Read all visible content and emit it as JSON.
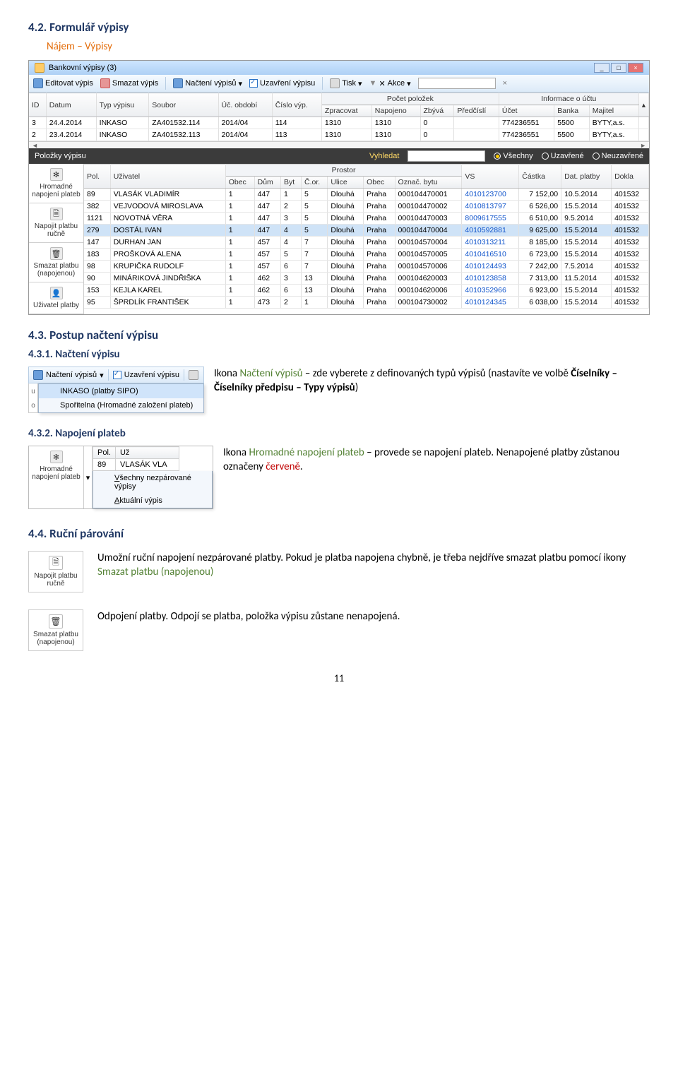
{
  "section42_num": "4.2.",
  "section42_title": "Formulář výpisy",
  "section42_link": "Nájem – Výpisy",
  "window": {
    "title": "Bankovní výpisy (3)",
    "toolbar": {
      "edit": "Editovat výpis",
      "delete": "Smazat výpis",
      "read": "Načtení výpisů",
      "close": "Uzavření výpisu",
      "print": "Tisk",
      "filter": "Akce"
    },
    "top_cols": [
      "ID",
      "Datum",
      "Typ výpisu",
      "Soubor",
      "Úč. období",
      "Číslo výp."
    ],
    "top_group_a": "Počet položek",
    "top_sub_a": [
      "Zpracovat",
      "Napojeno",
      "Zbývá",
      "Předčíslí"
    ],
    "top_group_b": "Informace o účtu",
    "top_sub_b": [
      "Účet",
      "Banka",
      "Majitel"
    ],
    "top_rows": [
      [
        "3",
        "24.4.2014",
        "INKASO",
        "ZA401532.114",
        "2014/04",
        "114",
        "1310",
        "1310",
        "0",
        "",
        "774236551",
        "5500",
        "BYTY,a.s."
      ],
      [
        "2",
        "23.4.2014",
        "INKASO",
        "ZA401532.113",
        "2014/04",
        "113",
        "1310",
        "1310",
        "0",
        "",
        "774236551",
        "5500",
        "BYTY,a.s."
      ]
    ],
    "subhdr_title": "Položky výpisu",
    "subhdr_search": "Vyhledat",
    "subhdr_filters": [
      "Všechny",
      "Uzavřené",
      "Neuzavřené"
    ],
    "side_buttons": [
      {
        "icon": "✻",
        "label": "Hromadné napojení plateb"
      },
      {
        "icon": "🗎",
        "label": "Napojit platbu ručně"
      },
      {
        "icon": "🗑",
        "label": "Smazat platbu (napojenou)"
      },
      {
        "icon": "👤",
        "label": "Uživatel platby"
      }
    ],
    "bot_cols_left": [
      "Pol.",
      "Uživatel"
    ],
    "bot_group_a": "Prostor",
    "bot_sub_a": [
      "Obec",
      "Dům",
      "Byt",
      "Č.or.",
      "Ulice",
      "Obec",
      "Označ. bytu"
    ],
    "bot_cols_right": [
      "VS",
      "Částka",
      "Dat. platby",
      "Dokla"
    ],
    "bot_rows": [
      [
        "89",
        "VLASÁK VLADIMÍR",
        "1",
        "447",
        "1",
        "5",
        "Dlouhá",
        "Praha",
        "000104470001",
        "4010123700",
        "7 152,00",
        "10.5.2014",
        "401532"
      ],
      [
        "382",
        "VEJVODOVÁ MIROSLAVA",
        "1",
        "447",
        "2",
        "5",
        "Dlouhá",
        "Praha",
        "000104470002",
        "4010813797",
        "6 526,00",
        "15.5.2014",
        "401532"
      ],
      [
        "1121",
        "NOVOTNÁ VĚRA",
        "1",
        "447",
        "3",
        "5",
        "Dlouhá",
        "Praha",
        "000104470003",
        "8009617555",
        "6 510,00",
        "9.5.2014",
        "401532"
      ],
      [
        "279",
        "DOSTÁL IVAN",
        "1",
        "447",
        "4",
        "5",
        "Dlouhá",
        "Praha",
        "000104470004",
        "4010592881",
        "9 625,00",
        "15.5.2014",
        "401532"
      ],
      [
        "147",
        "DURHAN JAN",
        "1",
        "457",
        "4",
        "7",
        "Dlouhá",
        "Praha",
        "000104570004",
        "4010313211",
        "8 185,00",
        "15.5.2014",
        "401532"
      ],
      [
        "183",
        "PROŠKOVÁ ALENA",
        "1",
        "457",
        "5",
        "7",
        "Dlouhá",
        "Praha",
        "000104570005",
        "4010416510",
        "6 723,00",
        "15.5.2014",
        "401532"
      ],
      [
        "98",
        "KRUPIČKA RUDOLF",
        "1",
        "457",
        "6",
        "7",
        "Dlouhá",
        "Praha",
        "000104570006",
        "4010124493",
        "7 242,00",
        "7.5.2014",
        "401532"
      ],
      [
        "90",
        "MINÁRIKOVÁ JINDŘIŠKA",
        "1",
        "462",
        "3",
        "13",
        "Dlouhá",
        "Praha",
        "000104620003",
        "4010123858",
        "7 313,00",
        "11.5.2014",
        "401532"
      ],
      [
        "153",
        "KEJLA KAREL",
        "1",
        "462",
        "6",
        "13",
        "Dlouhá",
        "Praha",
        "000104620006",
        "4010352966",
        "6 923,00",
        "15.5.2014",
        "401532"
      ],
      [
        "95",
        "ŠPRDLÍK FRANTIŠEK",
        "1",
        "473",
        "2",
        "1",
        "Dlouhá",
        "Praha",
        "000104730002",
        "4010124345",
        "6 038,00",
        "15.5.2014",
        "401532"
      ]
    ],
    "sel_row_idx": 3
  },
  "section43_num": "4.3.",
  "section43_title": "Postup načtení výpisu",
  "section431_num": "4.3.1.",
  "section431_title": "Načtení výpisu",
  "p431_a": "Ikona ",
  "p431_b": "Načtení výpisů",
  "p431_c": " – zde vyberete z definovaných typů výpisů (nastavíte ve volbě ",
  "p431_d": "Číselníky – Číselníky předpisu – Typy výpisů",
  "p431_e": ")",
  "ctx": {
    "toolbar": [
      "Načtení výpisů",
      "Uzavření výpisu"
    ],
    "items": [
      "INKASO (platby SIPO)",
      "Spořitelna (Hromadné založení plateb)"
    ],
    "side_o": "o"
  },
  "section432_num": "4.3.2.",
  "section432_title": "Napojení plateb",
  "p432_a": "Ikona ",
  "p432_b": "Hromadné napojení plateb",
  "p432_c": " – provede se napojení plateb. Nenapojené platby zůstanou označeny ",
  "p432_d": "červeně",
  "p432_e": ".",
  "grid432": {
    "side": {
      "icon": "✻",
      "label": "Hromadné napojení plateb",
      "chev": "▾"
    },
    "cols": [
      "Pol.",
      "Už"
    ],
    "row": [
      "89",
      "VLASÁK VLA"
    ],
    "menu": [
      "Všechny nezpárované výpisy",
      "Aktuální výpis"
    ]
  },
  "section44_num": "4.4.",
  "section44_title": "Ruční párování",
  "side44a": {
    "icon": "🗎",
    "label": "Napojit platbu ručně"
  },
  "p44a": "Umožní ruční napojení nezpárované platby. Pokud je platba napojena chybně, je třeba nejdříve smazat platbu pomocí ikony ",
  "p44a_b": "Smazat platbu (napojenou)",
  "side44b": {
    "icon": "🗑",
    "label": "Smazat platbu (napojenou)"
  },
  "p44b": "Odpojení platby. Odpojí se platba, položka výpisu zůstane nenapojená.",
  "page_num": "11"
}
